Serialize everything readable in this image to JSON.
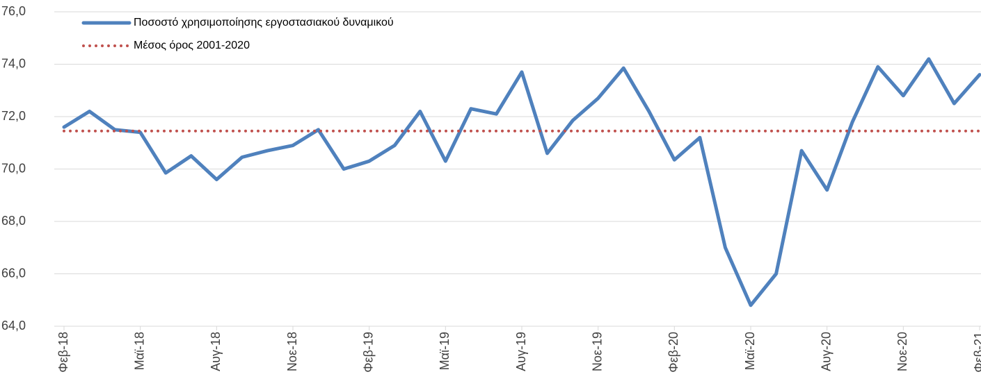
{
  "chart_data": {
    "type": "line",
    "categories": [
      "Φεβ-18",
      null,
      null,
      "Μαϊ-18",
      null,
      null,
      "Αυγ-18",
      null,
      null,
      "Νοε-18",
      null,
      null,
      "Φεβ-19",
      null,
      null,
      "Μαϊ-19",
      null,
      null,
      "Αυγ-19",
      null,
      null,
      "Νοε-19",
      null,
      null,
      "Φεβ-20",
      null,
      null,
      "Μαϊ-20",
      null,
      null,
      "Αυγ-20",
      null,
      null,
      "Νοε-20",
      null,
      null,
      "Φεβ-21"
    ],
    "series": [
      {
        "name": "Ποσοστό χρησιμοποίησης εργοστασιακού δυναμικού",
        "color": "#4f81bd",
        "style": "solid",
        "values": [
          71.6,
          72.2,
          71.5,
          71.4,
          69.85,
          70.5,
          69.6,
          70.45,
          70.7,
          70.9,
          71.5,
          70.0,
          70.3,
          70.9,
          72.2,
          70.3,
          72.3,
          72.1,
          73.7,
          70.6,
          71.85,
          72.7,
          73.85,
          72.2,
          70.35,
          71.2,
          67.0,
          64.8,
          66.0,
          70.7,
          69.2,
          71.8,
          73.9,
          72.8,
          74.2,
          72.5,
          73.6
        ]
      },
      {
        "name": "Μέσος όρος 2001-2020",
        "color": "#c0504d",
        "style": "dotted",
        "values": [
          71.45,
          71.45,
          71.45,
          71.45,
          71.45,
          71.45,
          71.45,
          71.45,
          71.45,
          71.45,
          71.45,
          71.45,
          71.45,
          71.45,
          71.45,
          71.45,
          71.45,
          71.45,
          71.45,
          71.45,
          71.45,
          71.45,
          71.45,
          71.45,
          71.45,
          71.45,
          71.45,
          71.45,
          71.45,
          71.45,
          71.45,
          71.45,
          71.45,
          71.45,
          71.45,
          71.45,
          71.45
        ]
      }
    ],
    "ylim": [
      64,
      76
    ],
    "yticks": [
      {
        "value": 64,
        "label": "64,0"
      },
      {
        "value": 66,
        "label": "66,0"
      },
      {
        "value": 68,
        "label": "68,0"
      },
      {
        "value": 70,
        "label": "70,0"
      },
      {
        "value": 72,
        "label": "72,0"
      },
      {
        "value": 74,
        "label": "74,0"
      },
      {
        "value": 76,
        "label": "76,0"
      }
    ],
    "grid": true,
    "legend": "top-left"
  }
}
